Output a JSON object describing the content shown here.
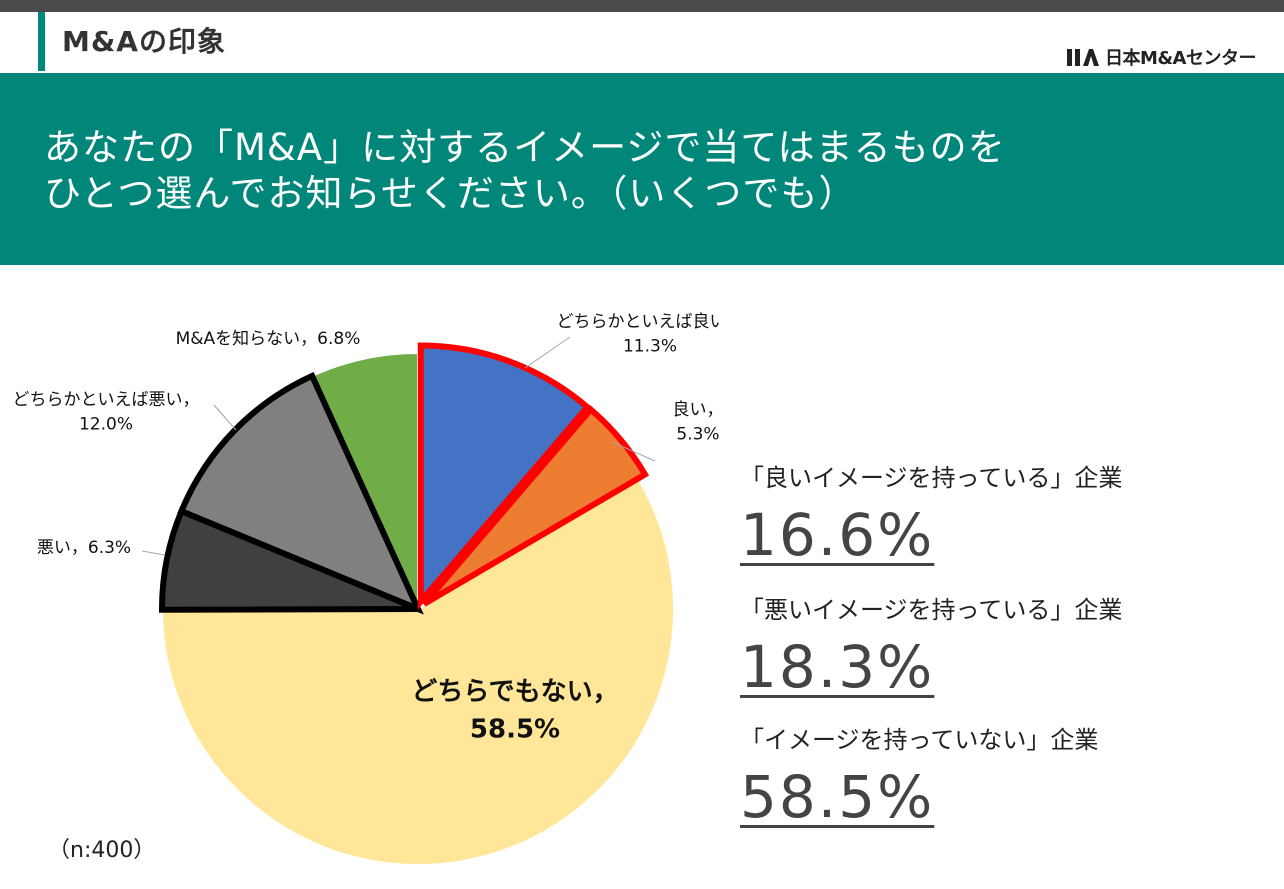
{
  "header": {
    "section_title": "M&Aの印象",
    "logo_text": "日本M&Aセンター",
    "accent_color": "#00877a"
  },
  "question": {
    "line1": "あなたの「M&A」に対するイメージで当てはまるものを",
    "line2": "ひとつ選んでお知らせください。（いくつでも）"
  },
  "chart_data": {
    "type": "pie",
    "start_angle_deg": 0,
    "direction": "clockwise",
    "slices": [
      {
        "label": "どちらかといえば良い",
        "value": 11.3,
        "display": "11.3%",
        "color": "#4472c4",
        "outline": "#ff0000"
      },
      {
        "label": "良い",
        "value": 5.3,
        "display": "5.3%",
        "color": "#ed7d31",
        "outline": "#ff0000"
      },
      {
        "label": "どちらでもない",
        "value": 58.5,
        "display": "58.5%",
        "color": "#ffe699",
        "outline": "#ffffff"
      },
      {
        "label": "悪い",
        "value": 6.3,
        "display": "6.3%",
        "color": "#404040",
        "outline": "#000000"
      },
      {
        "label": "どちらかといえば悪い",
        "value": 12.0,
        "display": "12.0%",
        "color": "#808080",
        "outline": "#000000"
      },
      {
        "label": "M&Aを知らない",
        "value": 6.8,
        "display": "6.8%",
        "color": "#70ad47",
        "outline": "#ffffff"
      }
    ]
  },
  "summary": [
    {
      "label": "「良いイメージを持っている」企業",
      "value": "16.6%"
    },
    {
      "label": "「悪いイメージを持っている」企業",
      "value": "18.3%"
    },
    {
      "label": "「イメージを持っていない」企業",
      "value": "58.5%"
    }
  ],
  "sample_size": "（n:400）"
}
